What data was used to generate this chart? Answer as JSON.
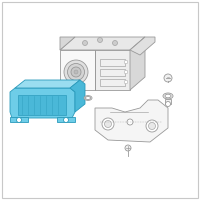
{
  "background_color": "#ffffff",
  "border_color": "#c8c8c8",
  "icm_fill": "#6ecde8",
  "icm_fill_top": "#9addf0",
  "icm_fill_side": "#4ab8d8",
  "icm_edge": "#2a9abb",
  "part_edge": "#999999",
  "part_fill": "#f8f8f8",
  "part_fill2": "#eeeeee",
  "figsize": [
    2.0,
    2.0
  ],
  "dpi": 100
}
